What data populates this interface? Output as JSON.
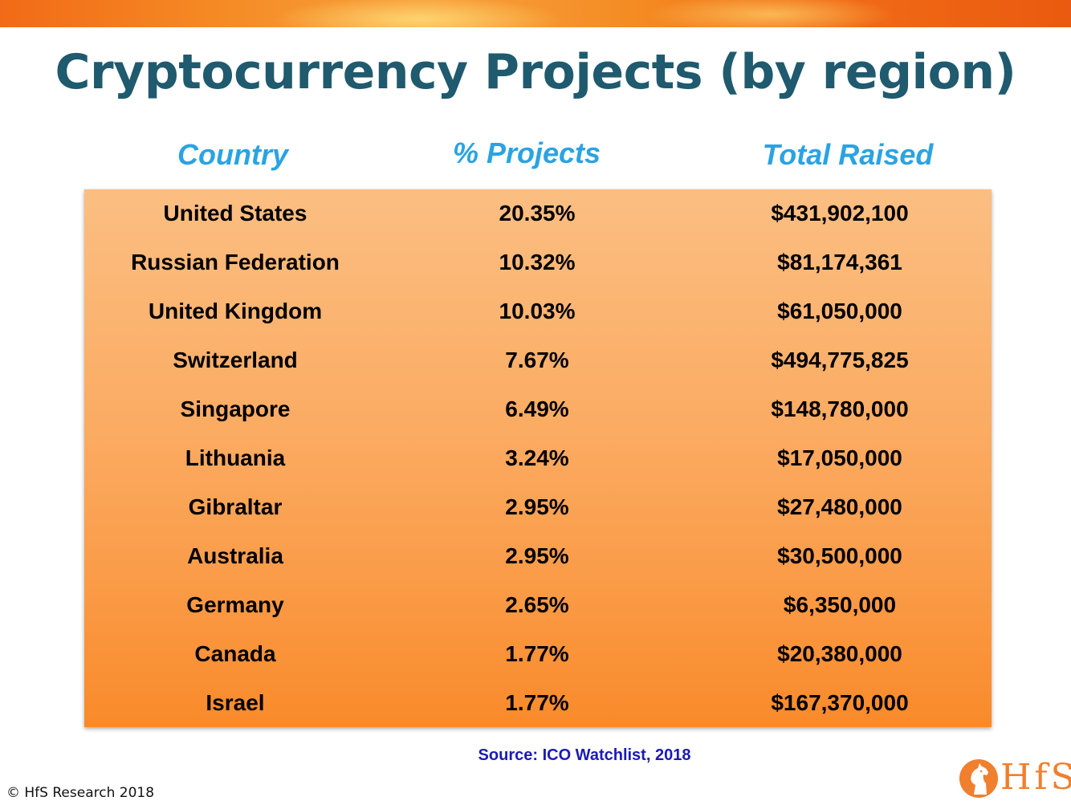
{
  "title": "Cryptocurrency Projects (by region)",
  "columns": {
    "country": "Country",
    "projects": "% Projects",
    "raised": "Total Raised"
  },
  "rows": [
    {
      "country": "United States",
      "projects": "20.35%",
      "raised": "$431,902,100"
    },
    {
      "country": "Russian Federation",
      "projects": "10.32%",
      "raised": "$81,174,361"
    },
    {
      "country": "United Kingdom",
      "projects": "10.03%",
      "raised": "$61,050,000"
    },
    {
      "country": "Switzerland",
      "projects": "7.67%",
      "raised": "$494,775,825"
    },
    {
      "country": "Singapore",
      "projects": "6.49%",
      "raised": "$148,780,000"
    },
    {
      "country": "Lithuania",
      "projects": "3.24%",
      "raised": "$17,050,000"
    },
    {
      "country": "Gibraltar",
      "projects": "2.95%",
      "raised": "$27,480,000"
    },
    {
      "country": "Australia",
      "projects": "2.95%",
      "raised": "$30,500,000"
    },
    {
      "country": "Germany",
      "projects": "2.65%",
      "raised": "$6,350,000"
    },
    {
      "country": "Canada",
      "projects": "1.77%",
      "raised": "$20,380,000"
    },
    {
      "country": "Israel",
      "projects": "1.77%",
      "raised": "$167,370,000"
    }
  ],
  "source": "Source: ICO Watchlist, 2018",
  "copyright": "© HfS Research 2018",
  "logo": {
    "text": "HfS",
    "icon": "horse-head-icon"
  },
  "colors": {
    "title": "#1f5a6e",
    "header": "#2aa3e3",
    "source": "#1a1ab8",
    "table_top": "#fbbe82",
    "table_bottom": "#f98a2a",
    "brand_orange": "#f07f2e"
  }
}
